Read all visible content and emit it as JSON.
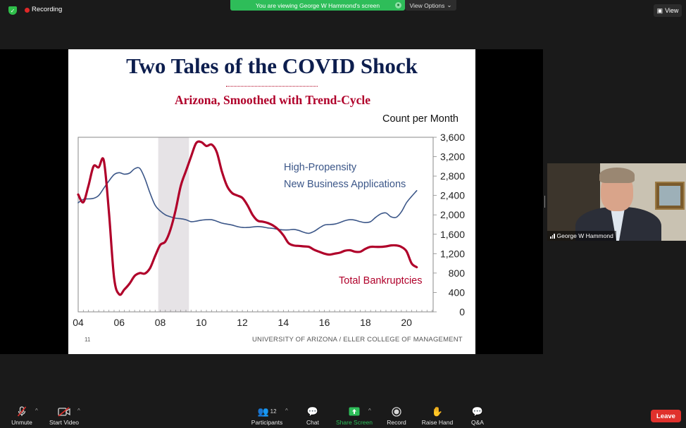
{
  "recording": {
    "label": "Recording"
  },
  "banner": {
    "text": "You are viewing George W Hammond's screen",
    "options_label": "View Options"
  },
  "view_button": {
    "label": "View"
  },
  "slide": {
    "title": "Two Tales of the COVID Shock",
    "subtitle": "Arizona, Smoothed with Trend-Cycle",
    "footer": "UNIVERSITY OF ARIZONA / ELLER COLLEGE OF MANAGEMENT",
    "page_number": "11"
  },
  "chart_data": {
    "type": "line",
    "ylabel_right": "Count per Month",
    "x_tick_labels": [
      "04",
      "06",
      "08",
      "10",
      "12",
      "14",
      "16",
      "18",
      "20"
    ],
    "x_ticks": [
      2004,
      2006,
      2008,
      2010,
      2012,
      2014,
      2016,
      2018,
      2020
    ],
    "xlim": [
      2004,
      2021.3
    ],
    "y_ticks": [
      0,
      400,
      800,
      1200,
      1600,
      2000,
      2400,
      2800,
      3200,
      3600
    ],
    "y_tick_labels": [
      "0",
      "400",
      "800",
      "1,200",
      "1,600",
      "2,000",
      "2,400",
      "2,800",
      "3,200",
      "3,600"
    ],
    "ylim": [
      0,
      3600
    ],
    "recession_shading": [
      2007.9,
      2009.4
    ],
    "colors": {
      "bankruptcies": "#b0002a",
      "applications": "#3b5688",
      "shading": "#e6e3e6"
    },
    "series": [
      {
        "name": "Total Bankruptcies",
        "annotation_lines": [
          "Total Bankruptcies"
        ],
        "key": "bankruptcies",
        "x": [
          2004.0,
          2004.25,
          2004.5,
          2004.75,
          2005.0,
          2005.25,
          2005.5,
          2005.75,
          2006.0,
          2006.25,
          2006.5,
          2006.75,
          2007.0,
          2007.25,
          2007.5,
          2007.75,
          2008.0,
          2008.25,
          2008.5,
          2008.75,
          2009.0,
          2009.25,
          2009.5,
          2009.75,
          2010.0,
          2010.25,
          2010.5,
          2010.75,
          2011.0,
          2011.25,
          2011.5,
          2011.75,
          2012.0,
          2012.25,
          2012.5,
          2012.75,
          2013.0,
          2013.25,
          2013.5,
          2013.75,
          2014.0,
          2014.25,
          2014.5,
          2014.75,
          2015.0,
          2015.25,
          2015.5,
          2015.75,
          2016.0,
          2016.25,
          2016.5,
          2016.75,
          2017.0,
          2017.25,
          2017.5,
          2017.75,
          2018.0,
          2018.25,
          2018.5,
          2018.75,
          2019.0,
          2019.25,
          2019.5,
          2019.75,
          2020.0,
          2020.25,
          2020.5
        ],
        "values": [
          2420,
          2260,
          2600,
          3000,
          2980,
          3120,
          2050,
          700,
          360,
          460,
          580,
          740,
          800,
          790,
          900,
          1150,
          1380,
          1450,
          1700,
          2100,
          2600,
          2900,
          3200,
          3480,
          3500,
          3420,
          3450,
          3300,
          2900,
          2600,
          2450,
          2400,
          2350,
          2200,
          2000,
          1880,
          1860,
          1830,
          1780,
          1700,
          1580,
          1420,
          1370,
          1360,
          1350,
          1340,
          1280,
          1240,
          1200,
          1180,
          1200,
          1220,
          1260,
          1270,
          1240,
          1240,
          1300,
          1340,
          1340,
          1340,
          1350,
          1370,
          1370,
          1340,
          1250,
          1000,
          920
        ]
      },
      {
        "name": "High-Propensity New Business Applications",
        "annotation_lines": [
          "High-Propensity",
          "New Business Applications"
        ],
        "key": "applications",
        "x": [
          2004.0,
          2004.25,
          2004.5,
          2004.75,
          2005.0,
          2005.25,
          2005.5,
          2005.75,
          2006.0,
          2006.25,
          2006.5,
          2006.75,
          2007.0,
          2007.25,
          2007.5,
          2007.75,
          2008.0,
          2008.25,
          2008.5,
          2008.75,
          2009.0,
          2009.25,
          2009.5,
          2009.75,
          2010.0,
          2010.25,
          2010.5,
          2010.75,
          2011.0,
          2011.25,
          2011.5,
          2011.75,
          2012.0,
          2012.25,
          2012.5,
          2012.75,
          2013.0,
          2013.25,
          2013.5,
          2013.75,
          2014.0,
          2014.25,
          2014.5,
          2014.75,
          2015.0,
          2015.25,
          2015.5,
          2015.75,
          2016.0,
          2016.25,
          2016.5,
          2016.75,
          2017.0,
          2017.25,
          2017.5,
          2017.75,
          2018.0,
          2018.25,
          2018.5,
          2018.75,
          2019.0,
          2019.25,
          2019.5,
          2019.75,
          2020.0,
          2020.25,
          2020.5
        ],
        "values": [
          2250,
          2320,
          2330,
          2340,
          2400,
          2550,
          2700,
          2830,
          2870,
          2840,
          2860,
          2950,
          2960,
          2750,
          2450,
          2200,
          2080,
          2000,
          1960,
          1930,
          1920,
          1900,
          1860,
          1870,
          1890,
          1900,
          1900,
          1870,
          1830,
          1810,
          1790,
          1760,
          1740,
          1740,
          1750,
          1760,
          1750,
          1730,
          1720,
          1700,
          1690,
          1690,
          1700,
          1680,
          1640,
          1620,
          1660,
          1730,
          1790,
          1800,
          1810,
          1840,
          1880,
          1900,
          1890,
          1860,
          1840,
          1860,
          1950,
          2020,
          2040,
          1960,
          1950,
          2060,
          2250,
          2380,
          2500
        ]
      }
    ]
  },
  "participant": {
    "name": "George W Hammond"
  },
  "toolbar": {
    "unmute": "Unmute",
    "start_video": "Start Video",
    "participants": "Participants",
    "participants_count": "12",
    "chat": "Chat",
    "share_screen": "Share Screen",
    "record": "Record",
    "raise_hand": "Raise Hand",
    "qa": "Q&A",
    "leave": "Leave"
  }
}
